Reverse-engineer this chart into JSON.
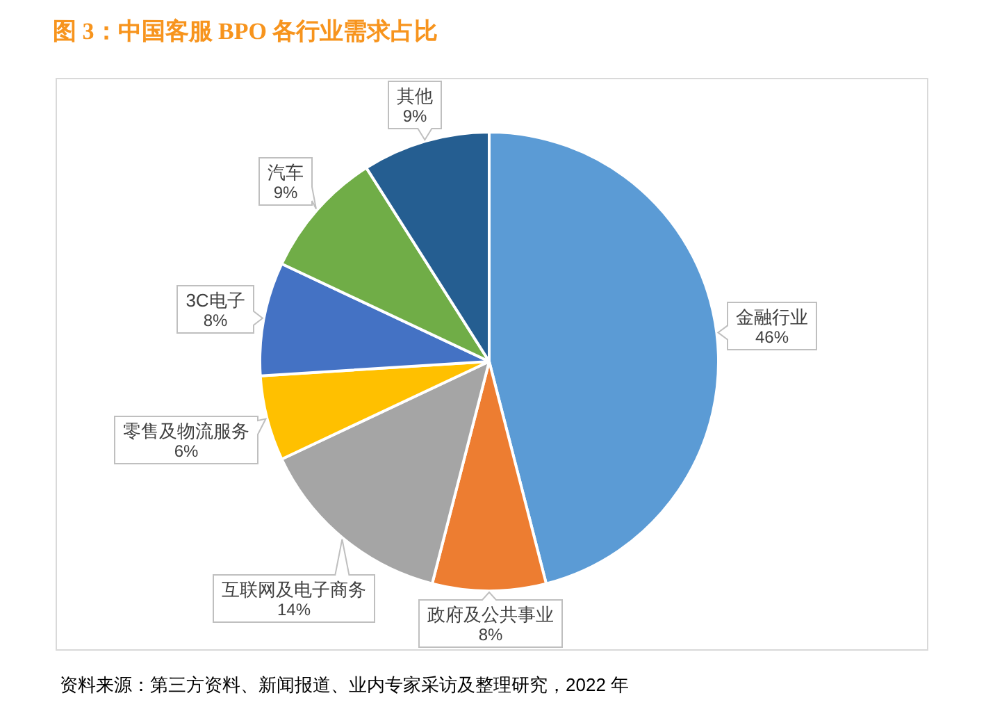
{
  "chart_data": {
    "type": "pie",
    "title": "图 3：中国客服 BPO 各行业需求占比",
    "categories": [
      "金融行业",
      "政府及公共事业",
      "互联网及电子商务",
      "零售及物流服务",
      "3C电子",
      "汽车",
      "其他"
    ],
    "values": [
      46,
      8,
      14,
      6,
      8,
      9,
      9
    ],
    "value_labels": [
      "46%",
      "8%",
      "14%",
      "6%",
      "8%",
      "9%",
      "9%"
    ],
    "colors": [
      "#5b9bd5",
      "#ed7d31",
      "#a5a5a5",
      "#ffc000",
      "#4472c4",
      "#70ad47",
      "#255e91"
    ],
    "annotations": [
      "资料来源：第三方资料、新闻报道、业内专家采访及整理研究，2022 年"
    ]
  }
}
